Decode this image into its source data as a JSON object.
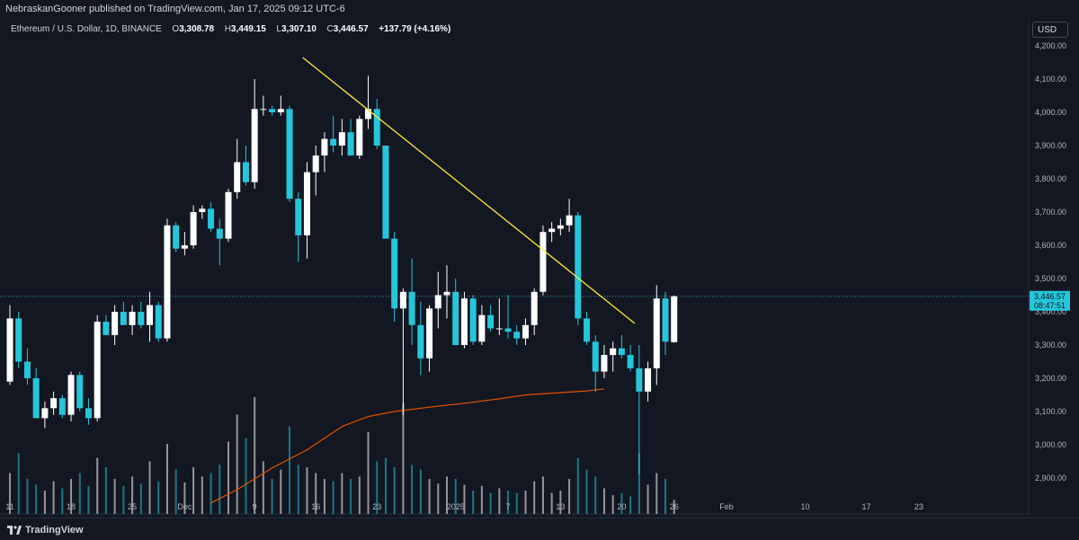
{
  "header": {
    "published_by": "NebraskanGooner published on TradingView.com, Jan 17, 2025 09:12 UTC-6"
  },
  "legend": {
    "symbol": "Ethereum / U.S. Dollar, 1D, BINANCE",
    "open_label": "O",
    "open": "3,308.78",
    "high_label": "H",
    "high": "3,449.15",
    "low_label": "L",
    "low": "3,307.10",
    "close_label": "C",
    "close": "3,446.57",
    "change": "+137.79 (+4.16%)"
  },
  "currency": "USD",
  "price_tag": {
    "price": "3,446.57",
    "countdown": "08:47:51"
  },
  "branding": {
    "name": "TradingView"
  },
  "colors": {
    "background": "#131722",
    "up_candle": "#ffffff",
    "down_candle": "#26c6da",
    "trendline": "#ffeb3b",
    "moving_average": "#e65100",
    "last_price_line": "#26c6da"
  },
  "chart_data": {
    "type": "candlestick",
    "symbol": "ETHUSD",
    "interval": "1D",
    "ylim": [
      2840,
      4260
    ],
    "y_ticks": [
      "2,900.00",
      "3,000.00",
      "3,100.00",
      "3,200.00",
      "3,300.00",
      "3,400.00",
      "3,500.00",
      "3,600.00",
      "3,700.00",
      "3,800.00",
      "3,900.00",
      "4,000.00",
      "4,100.00",
      "4,200.00"
    ],
    "y_tick_values": [
      2900,
      3000,
      3100,
      3200,
      3300,
      3400,
      3500,
      3600,
      3700,
      3800,
      3900,
      4000,
      4100,
      4200
    ],
    "x_ticks": [
      {
        "label": "11",
        "day": 0
      },
      {
        "label": "18",
        "day": 7
      },
      {
        "label": "25",
        "day": 14
      },
      {
        "label": "Dec",
        "day": 20
      },
      {
        "label": "9",
        "day": 28
      },
      {
        "label": "16",
        "day": 35
      },
      {
        "label": "23",
        "day": 42
      },
      {
        "label": "2025",
        "day": 51
      },
      {
        "label": "7",
        "day": 57
      },
      {
        "label": "13",
        "day": 63
      },
      {
        "label": "20",
        "day": 70
      },
      {
        "label": "26",
        "day": 76
      },
      {
        "label": "Feb",
        "day": 82
      },
      {
        "label": "10",
        "day": 91
      },
      {
        "label": "17",
        "day": 98
      },
      {
        "label": "23",
        "day": 104
      }
    ],
    "candles": [
      {
        "o": 3190,
        "h": 3420,
        "l": 3180,
        "c": 3380
      },
      {
        "o": 3380,
        "h": 3400,
        "l": 3230,
        "c": 3250
      },
      {
        "o": 3250,
        "h": 3290,
        "l": 3180,
        "c": 3200
      },
      {
        "o": 3200,
        "h": 3230,
        "l": 3080,
        "c": 3080
      },
      {
        "o": 3080,
        "h": 3130,
        "l": 3050,
        "c": 3110
      },
      {
        "o": 3110,
        "h": 3160,
        "l": 3090,
        "c": 3140
      },
      {
        "o": 3140,
        "h": 3150,
        "l": 3080,
        "c": 3090
      },
      {
        "o": 3090,
        "h": 3220,
        "l": 3070,
        "c": 3210
      },
      {
        "o": 3210,
        "h": 3220,
        "l": 3100,
        "c": 3110
      },
      {
        "o": 3110,
        "h": 3140,
        "l": 3060,
        "c": 3080
      },
      {
        "o": 3080,
        "h": 3390,
        "l": 3070,
        "c": 3370
      },
      {
        "o": 3370,
        "h": 3390,
        "l": 3330,
        "c": 3330
      },
      {
        "o": 3330,
        "h": 3420,
        "l": 3300,
        "c": 3400
      },
      {
        "o": 3400,
        "h": 3430,
        "l": 3360,
        "c": 3360
      },
      {
        "o": 3360,
        "h": 3420,
        "l": 3330,
        "c": 3400
      },
      {
        "o": 3400,
        "h": 3430,
        "l": 3350,
        "c": 3360
      },
      {
        "o": 3360,
        "h": 3460,
        "l": 3310,
        "c": 3420
      },
      {
        "o": 3420,
        "h": 3430,
        "l": 3310,
        "c": 3320
      },
      {
        "o": 3320,
        "h": 3680,
        "l": 3310,
        "c": 3660
      },
      {
        "o": 3660,
        "h": 3670,
        "l": 3580,
        "c": 3590
      },
      {
        "o": 3590,
        "h": 3640,
        "l": 3570,
        "c": 3600
      },
      {
        "o": 3600,
        "h": 3720,
        "l": 3590,
        "c": 3700
      },
      {
        "o": 3700,
        "h": 3720,
        "l": 3680,
        "c": 3710
      },
      {
        "o": 3710,
        "h": 3730,
        "l": 3640,
        "c": 3650
      },
      {
        "o": 3650,
        "h": 3680,
        "l": 3540,
        "c": 3620
      },
      {
        "o": 3620,
        "h": 3770,
        "l": 3610,
        "c": 3760
      },
      {
        "o": 3760,
        "h": 3920,
        "l": 3740,
        "c": 3850
      },
      {
        "o": 3850,
        "h": 3900,
        "l": 3780,
        "c": 3790
      },
      {
        "o": 3790,
        "h": 4100,
        "l": 3770,
        "c": 4010
      },
      {
        "o": 4010,
        "h": 4050,
        "l": 3990,
        "c": 4010
      },
      {
        "o": 4010,
        "h": 4020,
        "l": 3990,
        "c": 4000
      },
      {
        "o": 4000,
        "h": 4050,
        "l": 3990,
        "c": 4010
      },
      {
        "o": 4010,
        "h": 4020,
        "l": 3730,
        "c": 3740
      },
      {
        "o": 3740,
        "h": 3760,
        "l": 3550,
        "c": 3630
      },
      {
        "o": 3630,
        "h": 3850,
        "l": 3560,
        "c": 3820
      },
      {
        "o": 3820,
        "h": 3900,
        "l": 3750,
        "c": 3870
      },
      {
        "o": 3870,
        "h": 3940,
        "l": 3820,
        "c": 3920
      },
      {
        "o": 3920,
        "h": 3990,
        "l": 3880,
        "c": 3900
      },
      {
        "o": 3900,
        "h": 3980,
        "l": 3870,
        "c": 3940
      },
      {
        "o": 3940,
        "h": 3980,
        "l": 3880,
        "c": 3870
      },
      {
        "o": 3870,
        "h": 3990,
        "l": 3860,
        "c": 3980
      },
      {
        "o": 3980,
        "h": 4110,
        "l": 3950,
        "c": 4010
      },
      {
        "o": 4010,
        "h": 4040,
        "l": 3890,
        "c": 3900
      },
      {
        "o": 3900,
        "h": 3900,
        "l": 3620,
        "c": 3620
      },
      {
        "o": 3620,
        "h": 3640,
        "l": 3370,
        "c": 3410
      },
      {
        "o": 3410,
        "h": 3470,
        "l": 3090,
        "c": 3460
      },
      {
        "o": 3460,
        "h": 3560,
        "l": 3300,
        "c": 3360
      },
      {
        "o": 3360,
        "h": 3430,
        "l": 3210,
        "c": 3260
      },
      {
        "o": 3260,
        "h": 3420,
        "l": 3220,
        "c": 3410
      },
      {
        "o": 3410,
        "h": 3520,
        "l": 3350,
        "c": 3450
      },
      {
        "o": 3450,
        "h": 3540,
        "l": 3380,
        "c": 3460
      },
      {
        "o": 3460,
        "h": 3500,
        "l": 3300,
        "c": 3300
      },
      {
        "o": 3300,
        "h": 3460,
        "l": 3290,
        "c": 3440
      },
      {
        "o": 3440,
        "h": 3450,
        "l": 3300,
        "c": 3310
      },
      {
        "o": 3310,
        "h": 3420,
        "l": 3300,
        "c": 3390
      },
      {
        "o": 3390,
        "h": 3420,
        "l": 3340,
        "c": 3350
      },
      {
        "o": 3350,
        "h": 3440,
        "l": 3330,
        "c": 3350
      },
      {
        "o": 3350,
        "h": 3450,
        "l": 3320,
        "c": 3340
      },
      {
        "o": 3340,
        "h": 3360,
        "l": 3300,
        "c": 3320
      },
      {
        "o": 3320,
        "h": 3380,
        "l": 3300,
        "c": 3360
      },
      {
        "o": 3360,
        "h": 3470,
        "l": 3330,
        "c": 3460
      },
      {
        "o": 3460,
        "h": 3660,
        "l": 3450,
        "c": 3640
      },
      {
        "o": 3640,
        "h": 3670,
        "l": 3610,
        "c": 3650
      },
      {
        "o": 3650,
        "h": 3680,
        "l": 3630,
        "c": 3660
      },
      {
        "o": 3660,
        "h": 3740,
        "l": 3640,
        "c": 3690
      },
      {
        "o": 3690,
        "h": 3700,
        "l": 3360,
        "c": 3380
      },
      {
        "o": 3380,
        "h": 3400,
        "l": 3300,
        "c": 3310
      },
      {
        "o": 3310,
        "h": 3330,
        "l": 3160,
        "c": 3220
      },
      {
        "o": 3220,
        "h": 3300,
        "l": 3200,
        "c": 3270
      },
      {
        "o": 3270,
        "h": 3310,
        "l": 3220,
        "c": 3290
      },
      {
        "o": 3290,
        "h": 3330,
        "l": 3260,
        "c": 3270
      },
      {
        "o": 3270,
        "h": 3300,
        "l": 3220,
        "c": 3230
      },
      {
        "o": 3230,
        "h": 3300,
        "l": 2910,
        "c": 3160
      },
      {
        "o": 3160,
        "h": 3250,
        "l": 3130,
        "c": 3230
      },
      {
        "o": 3230,
        "h": 3480,
        "l": 3180,
        "c": 3440
      },
      {
        "o": 3440,
        "h": 3460,
        "l": 3270,
        "c": 3310
      },
      {
        "o": 3308.78,
        "h": 3449.15,
        "l": 3307.1,
        "c": 3446.57
      }
    ],
    "volume_relative": [
      0.35,
      0.52,
      0.3,
      0.25,
      0.2,
      0.28,
      0.22,
      0.3,
      0.35,
      0.24,
      0.48,
      0.4,
      0.3,
      0.24,
      0.32,
      0.26,
      0.45,
      0.28,
      0.6,
      0.38,
      0.27,
      0.4,
      0.32,
      0.35,
      0.42,
      0.62,
      0.85,
      0.65,
      1.0,
      0.45,
      0.3,
      0.38,
      0.75,
      0.42,
      0.4,
      0.35,
      0.3,
      0.28,
      0.35,
      0.3,
      0.32,
      0.7,
      0.45,
      0.48,
      0.4,
      0.95,
      0.42,
      0.38,
      0.3,
      0.26,
      0.32,
      0.3,
      0.25,
      0.2,
      0.24,
      0.18,
      0.22,
      0.2,
      0.18,
      0.2,
      0.28,
      0.32,
      0.18,
      0.2,
      0.3,
      0.48,
      0.38,
      0.32,
      0.22,
      0.16,
      0.18,
      0.15,
      0.52,
      0.25,
      0.35,
      0.3,
      0.12
    ],
    "moving_average": [
      {
        "day": 23,
        "value": 2825
      },
      {
        "day": 26,
        "value": 2865
      },
      {
        "day": 30,
        "value": 2930
      },
      {
        "day": 34,
        "value": 2985
      },
      {
        "day": 38,
        "value": 3055
      },
      {
        "day": 41,
        "value": 3085
      },
      {
        "day": 44,
        "value": 3100
      },
      {
        "day": 48,
        "value": 3113
      },
      {
        "day": 52,
        "value": 3125
      },
      {
        "day": 56,
        "value": 3138
      },
      {
        "day": 59,
        "value": 3150
      },
      {
        "day": 62,
        "value": 3155
      },
      {
        "day": 66,
        "value": 3162
      },
      {
        "day": 68,
        "value": 3168
      }
    ],
    "trendline": {
      "start": {
        "day": 33.5,
        "price": 4165
      },
      "end": {
        "day": 71.5,
        "price": 3365
      }
    },
    "last_price": 3446.57
  }
}
